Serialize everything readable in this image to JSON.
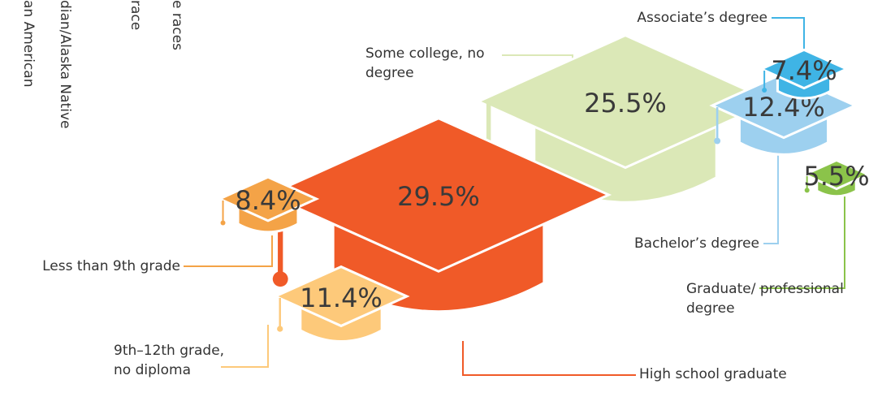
{
  "chart_data": {
    "type": "pictograph",
    "categories": [
      "Less than 9th grade",
      "9th–12th grade, no diploma",
      "High school graduate",
      "Some college, no degree",
      "Associate’s degree",
      "Bachelor’s degree",
      "Graduate/ professional degree"
    ],
    "values": [
      8.4,
      11.4,
      29.5,
      25.5,
      7.4,
      12.4,
      5.5
    ],
    "value_labels": [
      "8.4%",
      "11.4%",
      "29.5%",
      "25.5%",
      "7.4%",
      "12.4%",
      "5.5%"
    ],
    "colors": [
      "#f4a347",
      "#fdc97a",
      "#f05a28",
      "#dbe8b7",
      "#3fb4e5",
      "#9dd0ef",
      "#8bc34a"
    ]
  },
  "cropped_labels": [
    "an American",
    "dian/Alaska Native",
    "race",
    "e races"
  ]
}
